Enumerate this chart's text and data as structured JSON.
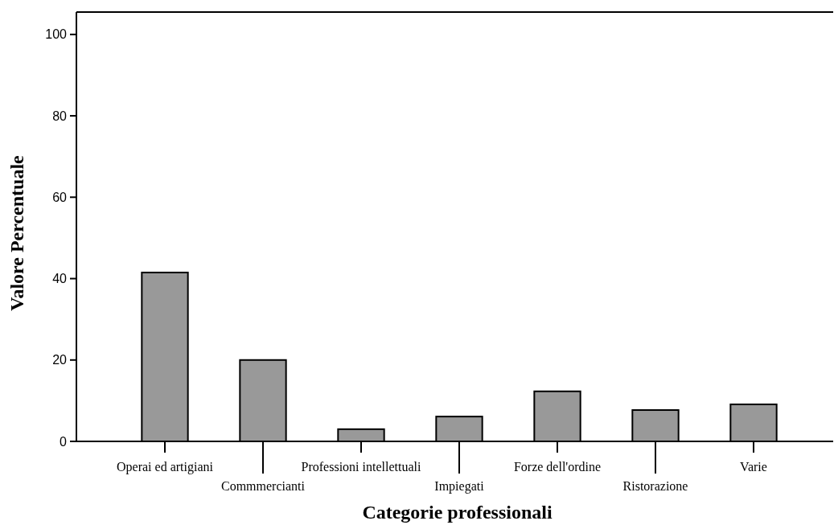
{
  "chart_data": {
    "type": "bar",
    "xlabel": "Categorie professionali",
    "ylabel": "Valore Percentuale",
    "categories": [
      "Operai ed artigiani",
      "Commmercianti",
      "Professioni intellettuali",
      "Impiegati",
      "Forze dell'ordine",
      "Ristorazione",
      "Varie"
    ],
    "values": [
      41.5,
      20,
      3,
      6.1,
      12.3,
      7.7,
      9.1
    ],
    "color": "#999999",
    "ylim": [
      0,
      105.5
    ],
    "yticks": [
      0,
      20,
      40,
      60,
      80,
      100
    ],
    "grid": false
  }
}
